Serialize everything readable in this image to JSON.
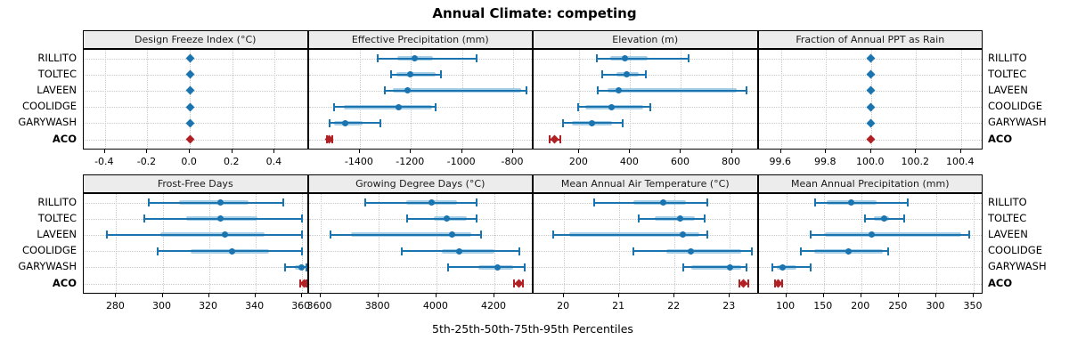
{
  "title": "Annual Climate: competing",
  "xlabel": "5th-25th-50th-75th-95th Percentiles",
  "row_labels": [
    "RILLITO",
    "TOLTEC",
    "LAVEEN",
    "COOLIDGE",
    "GARYWASH",
    "ACO"
  ],
  "colors": {
    "blue": "#1a74b0",
    "light_blue": "#a9cfe6",
    "red": "#b02025",
    "strip_bg": "#ececec",
    "grid": "#c8c8c8",
    "border": "#000000"
  },
  "chart_data": {
    "type": "dotplot",
    "percentiles": [
      5,
      25,
      50,
      75,
      95
    ],
    "legend": "rows are sites; dot = median, thick band = 25th-75th, thin line with caps = 5th-95th; ACO shown in red",
    "panels": [
      {
        "id": "design-freeze-index",
        "title": "Design Freeze Index (°C)",
        "domain": [
          -0.5,
          0.56
        ],
        "ticks": [
          -0.4,
          -0.2,
          0.0,
          0.2,
          0.4
        ],
        "tick_labels": [
          "-0.4",
          "-0.2",
          "0.0",
          "0.2",
          "0.4"
        ],
        "marker": "diamond",
        "values": [
          [
            0,
            0,
            0,
            0,
            0
          ],
          [
            0,
            0,
            0,
            0,
            0
          ],
          [
            0,
            0,
            0,
            0,
            0
          ],
          [
            0,
            0,
            0,
            0,
            0
          ],
          [
            0,
            0,
            0,
            0,
            0
          ],
          [
            0,
            0,
            0,
            0,
            0
          ]
        ]
      },
      {
        "id": "effective-precipitation",
        "title": "Effective Precipitation (mm)",
        "domain": [
          -1600,
          -720
        ],
        "ticks": [
          -1400,
          -1200,
          -1000,
          -800
        ],
        "tick_labels": [
          "-1400",
          "-1200",
          "-1000",
          "-800"
        ],
        "marker": "circle",
        "values": [
          [
            -1330,
            -1254,
            -1186,
            -1115,
            -942
          ],
          [
            -1279,
            -1256,
            -1202,
            -1103,
            -1081
          ],
          [
            -1303,
            -1272,
            -1213,
            -769,
            -748
          ],
          [
            -1501,
            -1464,
            -1247,
            -1118,
            -1103
          ],
          [
            -1518,
            -1502,
            -1456,
            -1388,
            -1320
          ],
          [
            -1530,
            -1524,
            -1519,
            -1514,
            -1508
          ]
        ]
      },
      {
        "id": "elevation",
        "title": "Elevation (m)",
        "domain": [
          20,
          905
        ],
        "ticks": [
          200,
          400,
          600,
          800
        ],
        "tick_labels": [
          "200",
          "400",
          "600",
          "800"
        ],
        "marker": "circle",
        "values": [
          [
            268,
            322,
            380,
            468,
            631
          ],
          [
            290,
            345,
            385,
            432,
            461
          ],
          [
            271,
            312,
            354,
            818,
            858
          ],
          [
            194,
            224,
            326,
            450,
            479
          ],
          [
            136,
            170,
            250,
            330,
            369
          ],
          [
            82,
            95,
            103,
            111,
            124
          ]
        ]
      },
      {
        "id": "fraction-ppt-rain",
        "title": "Fraction of Annual PPT as Rain",
        "domain": [
          99.5,
          100.5
        ],
        "ticks": [
          99.6,
          99.8,
          100.0,
          100.2,
          100.4
        ],
        "tick_labels": [
          "99.6",
          "99.8",
          "100.0",
          "100.2",
          "100.4"
        ],
        "marker": "diamond",
        "values": [
          [
            100,
            100,
            100,
            100,
            100
          ],
          [
            100,
            100,
            100,
            100,
            100
          ],
          [
            100,
            100,
            100,
            100,
            100
          ],
          [
            100,
            100,
            100,
            100,
            100
          ],
          [
            100,
            100,
            100,
            100,
            100
          ],
          [
            100,
            100,
            100,
            100,
            100
          ]
        ]
      },
      {
        "id": "frost-free-days",
        "title": "Frost-Free Days",
        "domain": [
          266,
          363
        ],
        "ticks": [
          280,
          300,
          320,
          340,
          360
        ],
        "tick_labels": [
          "280",
          "300",
          "320",
          "340",
          "360"
        ],
        "marker": "circle",
        "values": [
          [
            294,
            307,
            325,
            337,
            352
          ],
          [
            292,
            310,
            325,
            341,
            360
          ],
          [
            276,
            299,
            327,
            344,
            360
          ],
          [
            298,
            312,
            330,
            346,
            360
          ],
          [
            353,
            357,
            360,
            361,
            362
          ],
          [
            359.5,
            360.3,
            361,
            361.6,
            362.2
          ]
        ]
      },
      {
        "id": "growing-degree-days",
        "title": "Growing Degree Days (°C)",
        "domain": [
          3560,
          4335
        ],
        "ticks": [
          3600,
          3800,
          4000,
          4200
        ],
        "tick_labels": [
          "3600",
          "3800",
          "4000",
          "4200"
        ],
        "marker": "circle",
        "values": [
          [
            3755,
            3895,
            3985,
            4070,
            4140
          ],
          [
            3900,
            3990,
            4035,
            4105,
            4140
          ],
          [
            3635,
            3705,
            4055,
            4120,
            4155
          ],
          [
            3880,
            4020,
            4080,
            4200,
            4285
          ],
          [
            4040,
            4145,
            4210,
            4265,
            4305
          ],
          [
            4268,
            4276,
            4283,
            4290,
            4298
          ]
        ]
      },
      {
        "id": "mean-annual-air-temperature",
        "title": "Mean Annual Air Temperature (°C)",
        "domain": [
          19.45,
          23.52
        ],
        "ticks": [
          20,
          21,
          22,
          23
        ],
        "tick_labels": [
          "20",
          "21",
          "22",
          "23"
        ],
        "marker": "circle",
        "values": [
          [
            20.55,
            21.25,
            21.8,
            22.2,
            22.6
          ],
          [
            21.35,
            21.65,
            22.1,
            22.37,
            22.55
          ],
          [
            19.8,
            20.1,
            22.15,
            22.45,
            22.6
          ],
          [
            21.25,
            21.85,
            22.3,
            23.2,
            23.4
          ],
          [
            22.15,
            22.3,
            23.0,
            23.2,
            23.3
          ],
          [
            23.17,
            23.21,
            23.25,
            23.29,
            23.33
          ]
        ]
      },
      {
        "id": "mean-annual-precipitation",
        "title": "Mean Annual Precipitation (mm)",
        "domain": [
          63,
          363
        ],
        "ticks": [
          100,
          150,
          200,
          250,
          300,
          350
        ],
        "tick_labels": [
          "100",
          "150",
          "200",
          "250",
          "300",
          "350"
        ],
        "marker": "circle",
        "values": [
          [
            138,
            154,
            187,
            220,
            262
          ],
          [
            205,
            217,
            231,
            237,
            257
          ],
          [
            133,
            152,
            214,
            333,
            344
          ],
          [
            120,
            137,
            183,
            229,
            236
          ],
          [
            82,
            87,
            95,
            113,
            132
          ],
          [
            85,
            87,
            89,
            91,
            94
          ]
        ]
      }
    ]
  }
}
